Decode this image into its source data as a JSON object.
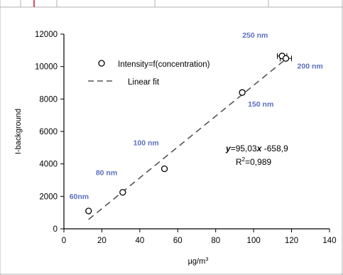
{
  "chart_data": {
    "type": "scatter",
    "xlabel": "µg/m",
    "xlabel_sup": "3",
    "ylabel": "I-background",
    "xlim": [
      0,
      140
    ],
    "ylim": [
      0,
      12000
    ],
    "x_ticks": [
      0,
      20,
      40,
      60,
      80,
      100,
      120,
      140
    ],
    "y_ticks": [
      0,
      2000,
      4000,
      6000,
      8000,
      10000,
      12000
    ],
    "grid": false,
    "legend_position": "top-left",
    "series": [
      {
        "name": "Intensity=f(concentration)",
        "marker": "open-circle",
        "points": [
          {
            "x": 13,
            "y": 1100
          },
          {
            "x": 31,
            "y": 2250
          },
          {
            "x": 53,
            "y": 3700
          },
          {
            "x": 94,
            "y": 8400
          },
          {
            "x": 115,
            "y": 10650
          },
          {
            "x": 117,
            "y": 10500
          }
        ],
        "x_error": [
          {
            "x": 115,
            "y": 10650,
            "err": 2.5
          },
          {
            "x": 117,
            "y": 10500,
            "err": 3
          }
        ]
      },
      {
        "name": "Linear fit",
        "style": "dashed",
        "points": [
          {
            "x": 13,
            "y": 576.5
          },
          {
            "x": 118,
            "y": 10555.6
          }
        ]
      }
    ],
    "annotations": [
      {
        "text": "60nm",
        "x": 13,
        "y": 1100,
        "color": "#5a6fc0"
      },
      {
        "text": "80 nm",
        "x": 31,
        "y": 2250,
        "color": "#5a6fc0"
      },
      {
        "text": "100 nm",
        "x": 53,
        "y": 3700,
        "color": "#5a6fc0"
      },
      {
        "text": "150 nm",
        "x": 94,
        "y": 8400,
        "color": "#5a6fc0"
      },
      {
        "text": "250 nm",
        "x": 115,
        "y": 10650,
        "color": "#5a6fc0"
      },
      {
        "text": "200 nm",
        "x": 117,
        "y": 10500,
        "color": "#5a6fc0"
      }
    ],
    "equation": {
      "y": "y",
      "rest": "=95,03",
      "x": "x",
      "tail": " -658,9"
    },
    "r2": {
      "base": "R",
      "sup": "2",
      "tail": "=0,989"
    }
  },
  "colors": {
    "annotation": "#5a6fc0",
    "axis": "#000000",
    "marker": "#000000",
    "fit_line": "#555555",
    "frame_line": "#c8102e"
  }
}
